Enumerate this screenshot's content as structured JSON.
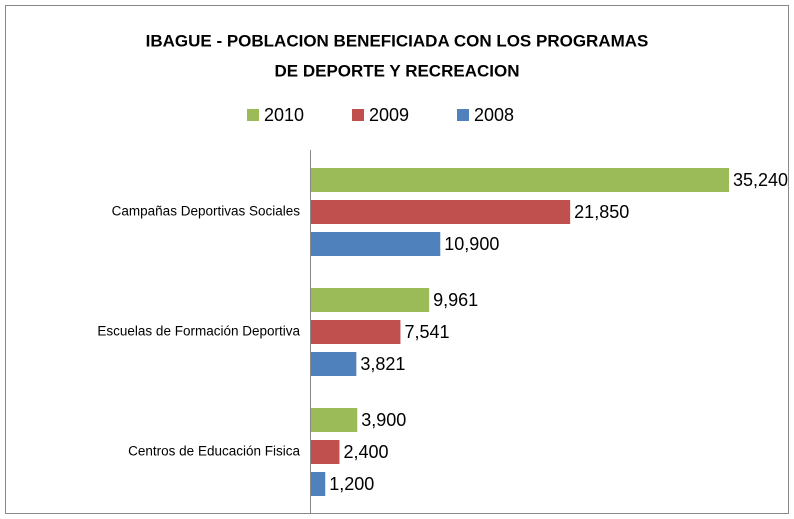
{
  "chart_data": {
    "type": "bar",
    "orientation": "horizontal",
    "title": [
      "IBAGUE - POBLACION BENEFICIADA CON LOS PROGRAMAS",
      "DE DEPORTE Y RECREACION"
    ],
    "categories": [
      "Campañas Deportivas Sociales",
      "Escuelas de Formación Deportiva",
      "Centros de Educación Fisica"
    ],
    "series": [
      {
        "name": "2010",
        "color": "#9bbb59",
        "values": [
          35240,
          9961,
          3900
        ],
        "value_labels": [
          "35,240",
          "9,961",
          "3,900"
        ]
      },
      {
        "name": "2009",
        "color": "#c0504d",
        "values": [
          21850,
          7541,
          2400
        ],
        "value_labels": [
          "21,850",
          "7,541",
          "2,400"
        ]
      },
      {
        "name": "2008",
        "color": "#4f81bd",
        "values": [
          10900,
          3821,
          1200
        ],
        "value_labels": [
          "10,900",
          "3,821",
          "1,200"
        ]
      }
    ],
    "legend": "top"
  }
}
